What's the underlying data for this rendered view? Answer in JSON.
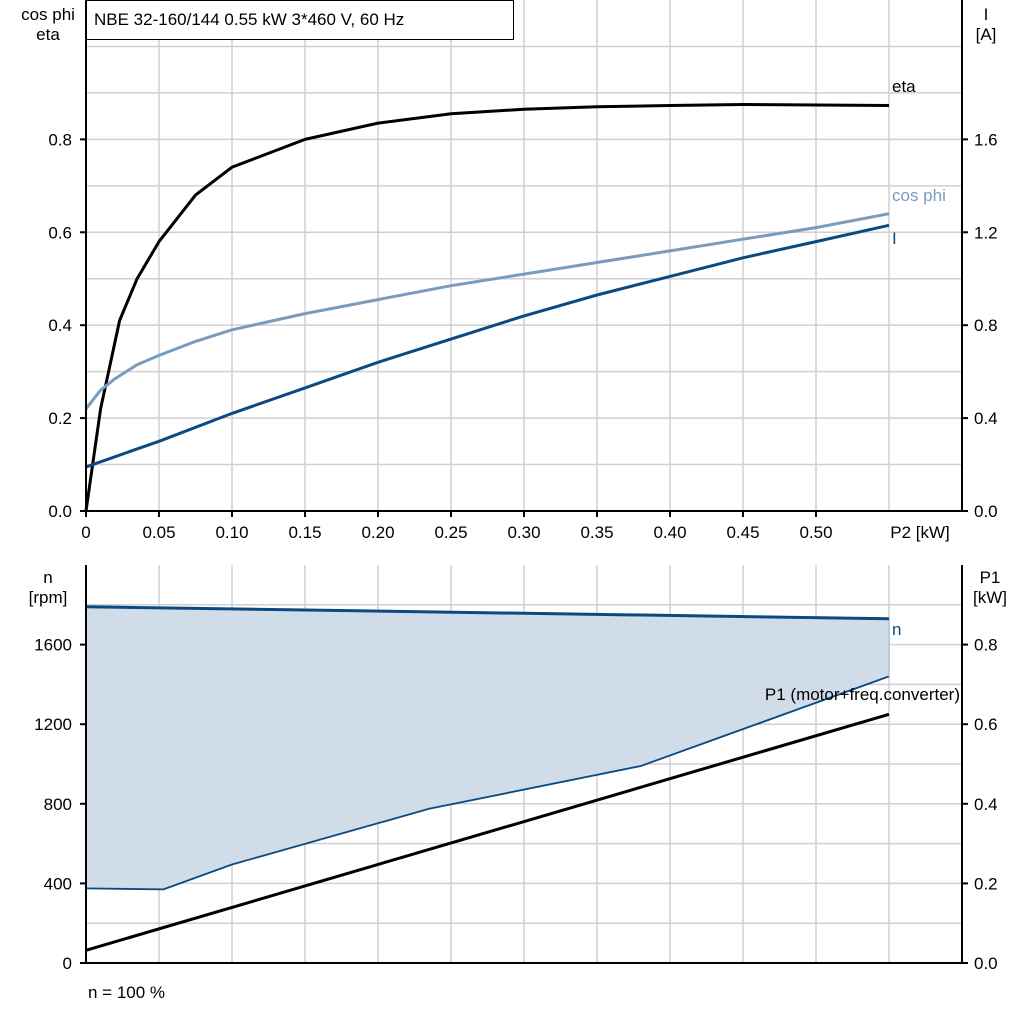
{
  "header": {
    "title": "NBE 32-160/144   0.55 kW   3*460 V, 60 Hz"
  },
  "footer": {
    "note": "n = 100 %"
  },
  "colors": {
    "eta": "#000000",
    "cos_phi": "#7a9cbc",
    "I": "#0b4a80",
    "n": "#0b4a80",
    "P1": "#000000",
    "band_fill": "#d0dce8",
    "grid": "#d0d0d0"
  },
  "chart_data": [
    {
      "type": "line",
      "xlabel": "P2 [kW]",
      "xticks": [
        0,
        0.05,
        0.1,
        0.15,
        0.2,
        0.25,
        0.3,
        0.35,
        0.4,
        0.45,
        0.5
      ],
      "xtick_labels": [
        "0",
        "0.05",
        "0.10",
        "0.15",
        "0.20",
        "0.25",
        "0.30",
        "0.35",
        "0.40",
        "0.45",
        "0.50"
      ],
      "xlim": [
        0,
        0.6
      ],
      "ylabel_left": [
        "cos phi",
        "eta"
      ],
      "ylim_left": [
        0,
        1.1
      ],
      "yticks_left": [
        "0.0",
        "0.2",
        "0.4",
        "0.6",
        "0.8"
      ],
      "ylabel_right": [
        "I",
        "[A]"
      ],
      "ylim_right": [
        0,
        2.2
      ],
      "yticks_right": [
        "0.0",
        "0.4",
        "0.8",
        "1.2",
        "1.6"
      ],
      "grid": true,
      "series": [
        {
          "name": "eta",
          "axis": "left",
          "x": [
            0,
            0.01,
            0.023,
            0.035,
            0.05,
            0.075,
            0.1,
            0.15,
            0.2,
            0.25,
            0.3,
            0.35,
            0.4,
            0.45,
            0.5,
            0.55
          ],
          "y": [
            0,
            0.22,
            0.41,
            0.5,
            0.58,
            0.68,
            0.74,
            0.8,
            0.835,
            0.855,
            0.865,
            0.87,
            0.873,
            0.875,
            0.874,
            0.873
          ]
        },
        {
          "name": "cos phi",
          "axis": "left",
          "x": [
            0,
            0.01,
            0.02,
            0.035,
            0.05,
            0.075,
            0.1,
            0.15,
            0.2,
            0.25,
            0.3,
            0.35,
            0.4,
            0.45,
            0.5,
            0.55
          ],
          "y": [
            0.22,
            0.26,
            0.285,
            0.315,
            0.335,
            0.365,
            0.39,
            0.425,
            0.455,
            0.485,
            0.51,
            0.535,
            0.56,
            0.585,
            0.61,
            0.64
          ]
        },
        {
          "name": "I",
          "axis": "right",
          "x": [
            0,
            0.05,
            0.1,
            0.15,
            0.2,
            0.25,
            0.3,
            0.35,
            0.4,
            0.45,
            0.5,
            0.55
          ],
          "y": [
            0.19,
            0.3,
            0.42,
            0.53,
            0.64,
            0.74,
            0.84,
            0.93,
            1.01,
            1.09,
            1.16,
            1.23
          ]
        }
      ]
    },
    {
      "type": "line",
      "xlim": [
        0,
        0.6
      ],
      "ylabel_left": [
        "n",
        "[rpm]"
      ],
      "ylim_left": [
        0,
        2000
      ],
      "yticks_left": [
        "0",
        "400",
        "800",
        "1200",
        "1600"
      ],
      "ylabel_right": [
        "P1",
        "[kW]"
      ],
      "ylim_right": [
        0,
        1.0
      ],
      "yticks_right": [
        "0.0",
        "0.2",
        "0.4",
        "0.6",
        "0.8"
      ],
      "grid": true,
      "series": [
        {
          "name": "n",
          "axis": "left",
          "x": [
            0,
            0.55
          ],
          "y": [
            1790,
            1730
          ]
        },
        {
          "name": "P1 (motor+freq.converter)",
          "axis": "right",
          "x": [
            0,
            0.55
          ],
          "y": [
            0.032,
            0.625
          ]
        },
        {
          "axis": "left",
          "x": [
            0,
            0.053,
            0.1,
            0.235,
            0.38,
            0.55
          ],
          "y": [
            375,
            370,
            495,
            775,
            990,
            1440
          ]
        }
      ]
    }
  ]
}
